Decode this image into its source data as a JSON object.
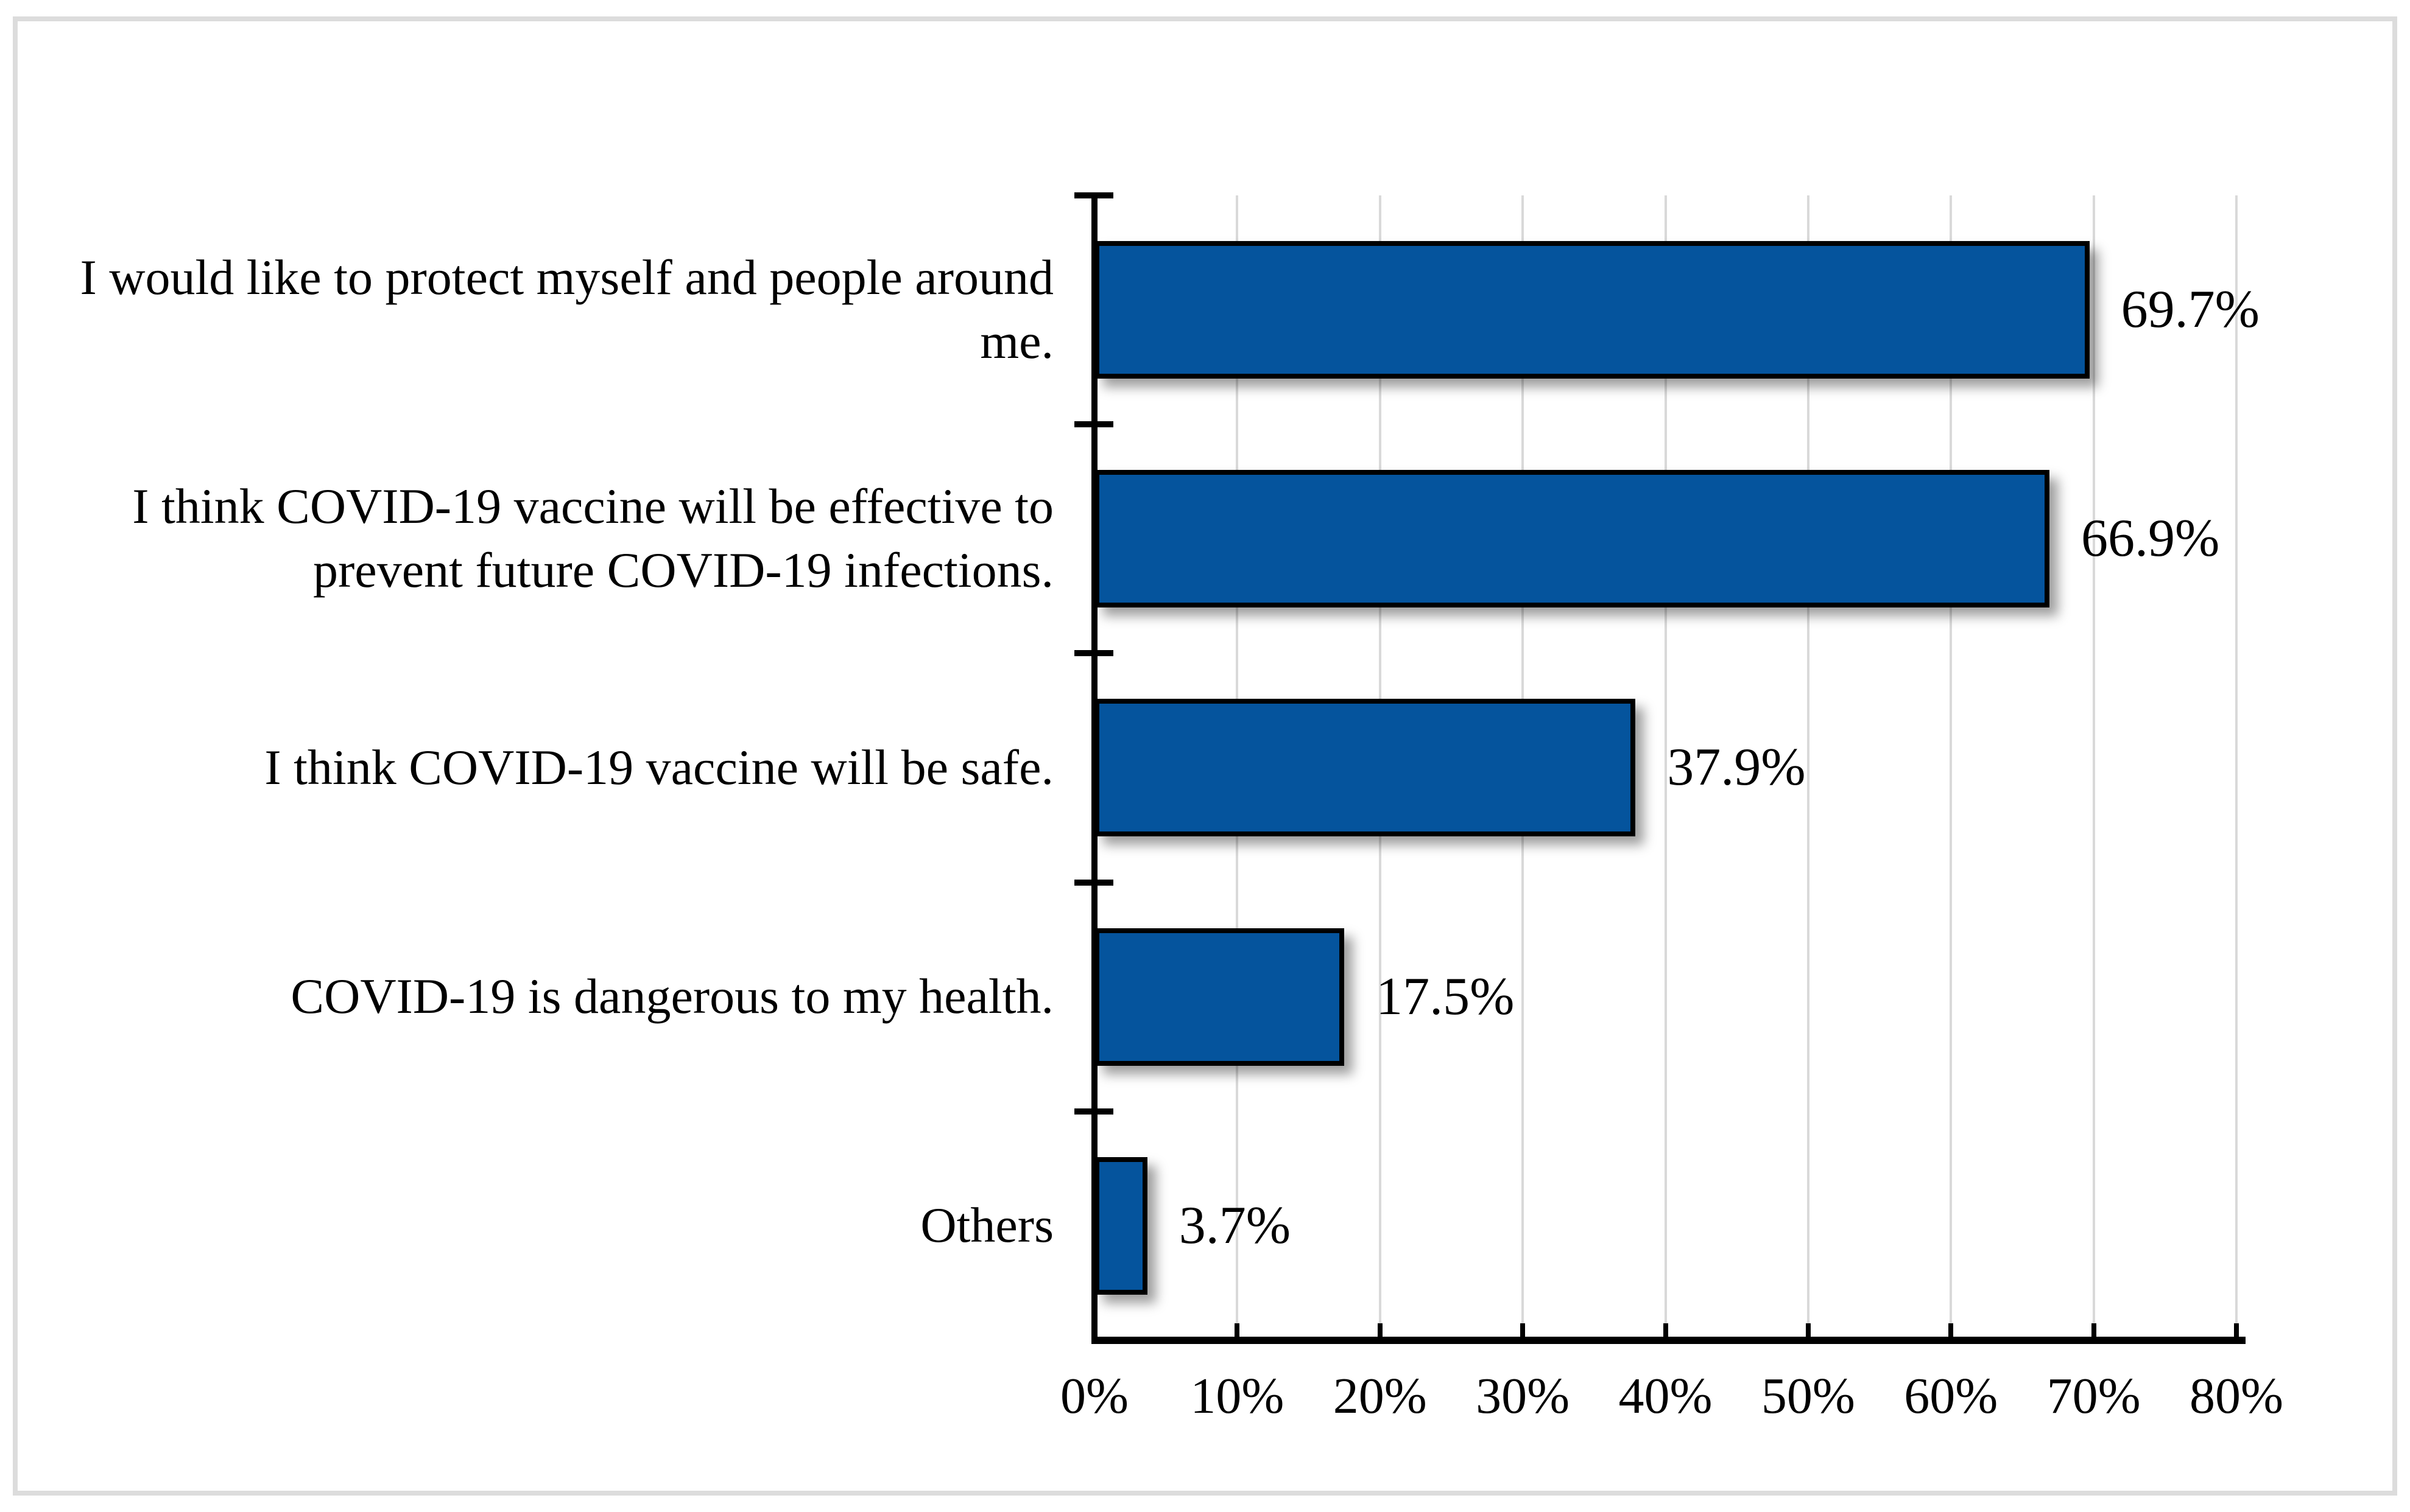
{
  "chart_data": {
    "type": "bar",
    "orientation": "horizontal",
    "title": "",
    "xlabel": "",
    "ylabel": "",
    "xlim": [
      0,
      80
    ],
    "x_tick_labels": [
      "0%",
      "10%",
      "20%",
      "30%",
      "40%",
      "50%",
      "60%",
      "70%",
      "80%"
    ],
    "grid": "vertical",
    "legend": "none",
    "bar_color": "#05549D",
    "bar_border_color": "#000000",
    "gridline_color": "#D9D9D9",
    "axis_color": "#000000",
    "frame_border_color": "#DCDCDC",
    "text_color": "#000000",
    "rows": [
      {
        "label": "I would like to protect myself and people around me.",
        "label_lines": [
          "I would like to protect myself and people around",
          "me."
        ],
        "value": 69.7,
        "value_label": "69.7%"
      },
      {
        "label": "I think COVID-19 vaccine will be effective to prevent future COVID-19 infections.",
        "label_lines": [
          "I think COVID-19 vaccine will be effective to",
          "prevent future COVID-19 infections."
        ],
        "value": 66.9,
        "value_label": "66.9%"
      },
      {
        "label": "I think COVID-19 vaccine will be safe.",
        "label_lines": [
          "I think COVID-19 vaccine will be safe."
        ],
        "value": 37.9,
        "value_label": "37.9%"
      },
      {
        "label": "COVID-19 is dangerous to my health.",
        "label_lines": [
          "COVID-19 is dangerous to my health."
        ],
        "value": 17.5,
        "value_label": "17.5%"
      },
      {
        "label": "Others",
        "label_lines": [
          "Others"
        ],
        "value": 3.7,
        "value_label": "3.7%"
      }
    ]
  }
}
